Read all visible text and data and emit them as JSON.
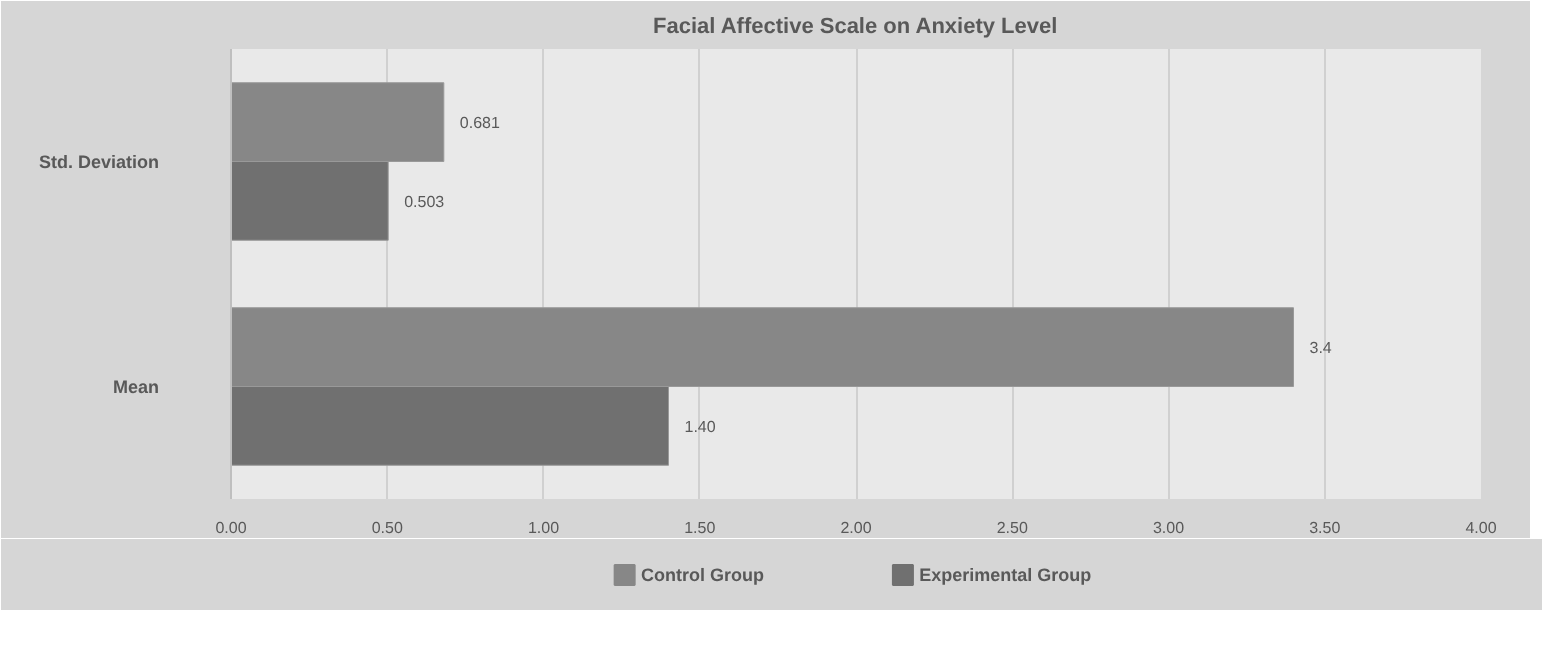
{
  "chart_data": {
    "type": "bar",
    "orientation": "horizontal",
    "title": "Facial Affective Scale on Anxiety Level",
    "categories": [
      "Std. Deviation",
      "Mean"
    ],
    "series": [
      {
        "name": "Control Group",
        "color": "#878787",
        "values": [
          0.681,
          3.4
        ],
        "value_labels": [
          "0.681",
          "3.4"
        ]
      },
      {
        "name": "Experimental Group",
        "color": "#707070",
        "values": [
          0.503,
          1.4
        ],
        "value_labels": [
          "0.503",
          "1.40"
        ]
      }
    ],
    "xlim": [
      0,
      4
    ],
    "xticks": [
      {
        "value": 0,
        "label": "0.00"
      },
      {
        "value": 0.5,
        "label": "0.50"
      },
      {
        "value": 1,
        "label": "1.00"
      },
      {
        "value": 1.5,
        "label": "1.50"
      },
      {
        "value": 2,
        "label": "2.00"
      },
      {
        "value": 2.5,
        "label": "2.50"
      },
      {
        "value": 3,
        "label": "3.00"
      },
      {
        "value": 3.5,
        "label": "3.50"
      },
      {
        "value": 4,
        "label": "4.00"
      }
    ],
    "grid": "x",
    "legend": "bottom"
  }
}
